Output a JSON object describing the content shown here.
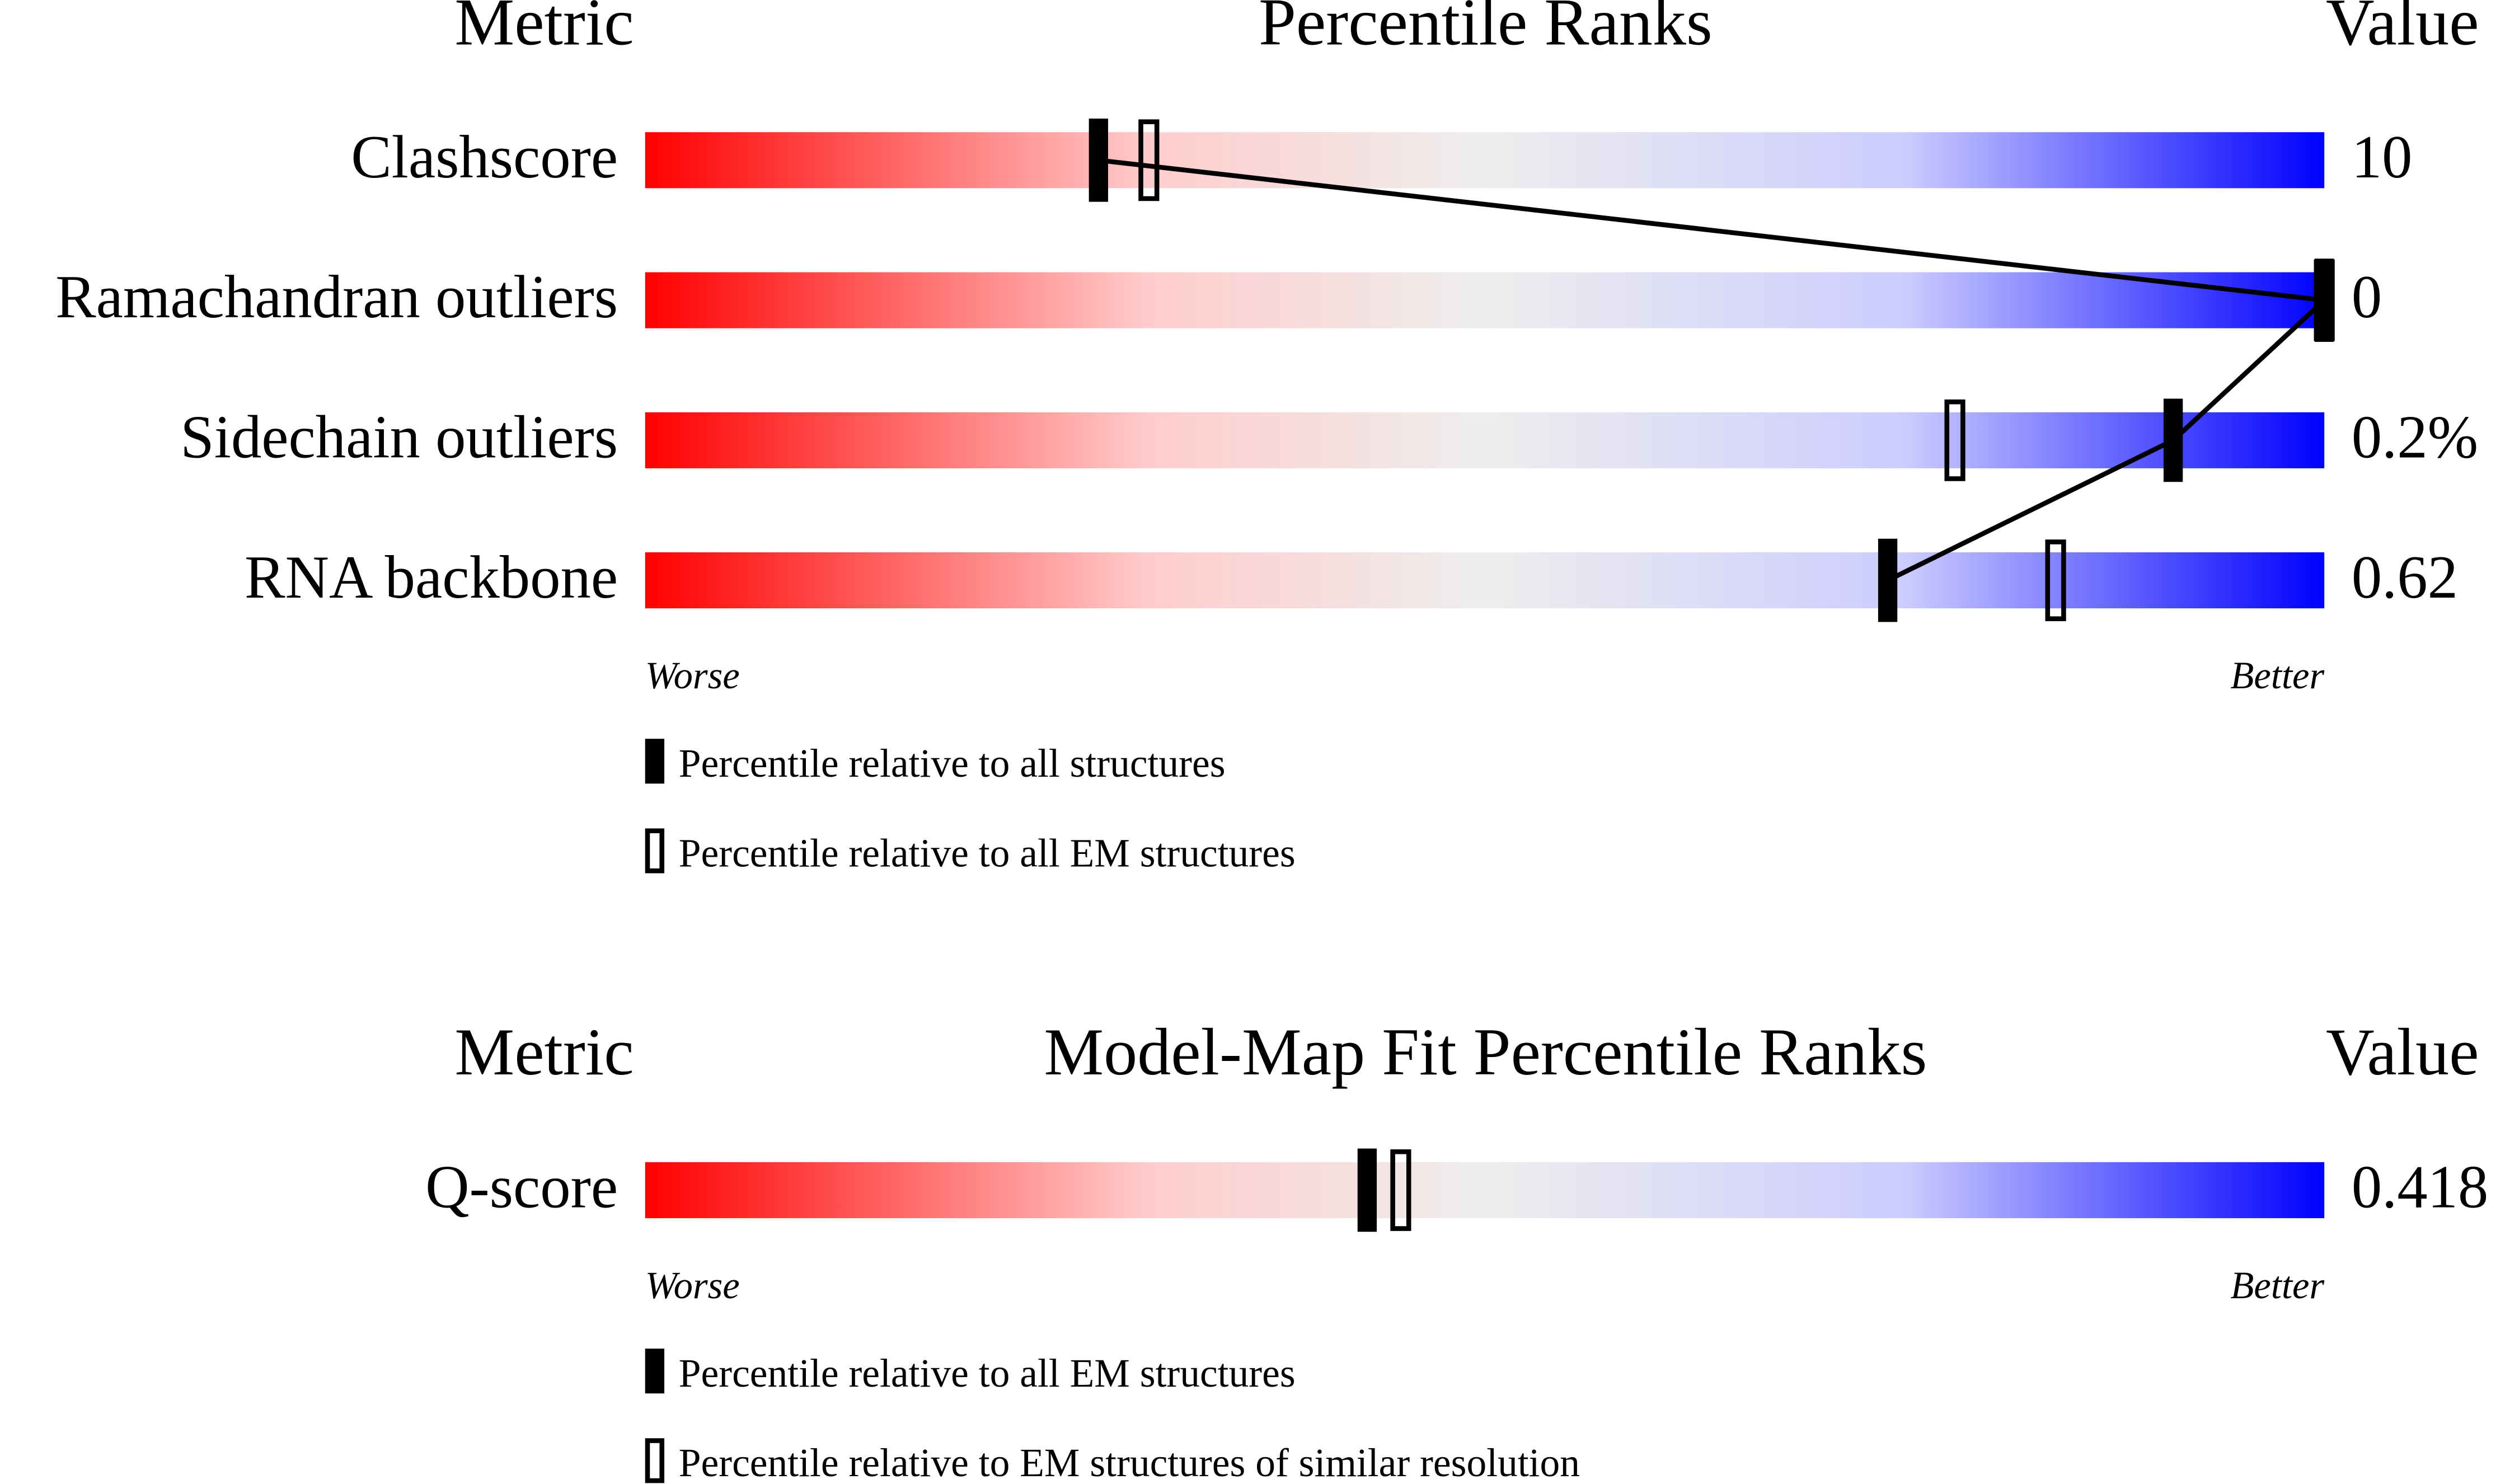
{
  "chart_data": [
    {
      "type": "slider",
      "metric_header": "Metric",
      "title": "Percentile Ranks",
      "value_header": "Value",
      "categories": [
        "Clashscore",
        "Ramachandran outliers",
        "Sidechain outliers",
        "RNA backbone"
      ],
      "metric_values": [
        "10",
        "0",
        "0.2%",
        "0.62"
      ],
      "xlim": [
        0,
        100
      ],
      "worse_label": "Worse",
      "better_label": "Better",
      "connect": true,
      "series": [
        {
          "name": "Percentile relative to all structures",
          "style": "filled",
          "color": "#000000",
          "values": [
            27,
            100,
            91,
            74
          ]
        },
        {
          "name": "Percentile relative to all EM structures",
          "style": "open",
          "color": "#000000",
          "values": [
            30,
            100,
            78,
            84
          ]
        }
      ]
    },
    {
      "type": "slider",
      "metric_header": "Metric",
      "title": "Model-Map Fit Percentile Ranks",
      "value_header": "Value",
      "categories": [
        "Q-score"
      ],
      "metric_values": [
        "0.418"
      ],
      "xlim": [
        0,
        100
      ],
      "worse_label": "Worse",
      "better_label": "Better",
      "connect": false,
      "series": [
        {
          "name": "Percentile relative to all EM structures",
          "style": "filled",
          "color": "#000000",
          "values": [
            43
          ]
        },
        {
          "name": "Percentile relative to EM structures of similar resolution",
          "style": "open",
          "color": "#000000",
          "values": [
            45
          ]
        }
      ]
    }
  ]
}
